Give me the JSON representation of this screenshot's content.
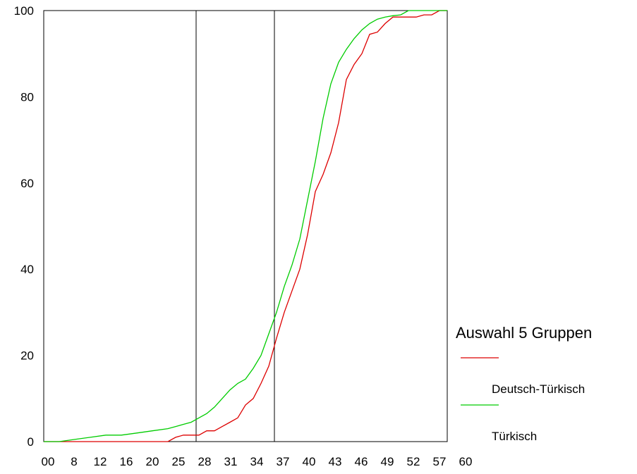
{
  "chart_data": {
    "type": "line",
    "title": "",
    "xlabel": "",
    "ylabel": "",
    "x_tick_labels": [
      "00",
      "8",
      "12",
      "16",
      "20",
      "25",
      "28",
      "31",
      "34",
      "37",
      "40",
      "43",
      "46",
      "49",
      "52",
      "57",
      "60"
    ],
    "y_ticks": [
      0,
      20,
      40,
      60,
      80,
      100
    ],
    "y_tick_labels": [
      "0",
      "20",
      "40",
      "60",
      "80",
      "100"
    ],
    "ylim": [
      0,
      100
    ],
    "grid": false,
    "reference_lines_x": [
      28,
      37
    ],
    "legend": {
      "title": "Auswahl 5 Gruppen",
      "position": "right",
      "entries": [
        {
          "label": "Deutsch-Türkisch",
          "color": "#dd0000"
        },
        {
          "label": "Türkisch",
          "color": "#00cc00"
        }
      ]
    },
    "series": [
      {
        "name": "Deutsch-Türkisch",
        "color": "#dd0000",
        "points": [
          [
            0,
            0
          ],
          [
            2,
            0
          ],
          [
            4,
            0
          ],
          [
            6,
            0
          ],
          [
            8,
            0
          ],
          [
            10,
            0
          ],
          [
            12,
            0
          ],
          [
            14,
            0
          ],
          [
            16,
            0
          ],
          [
            17,
            1
          ],
          [
            18,
            1.5
          ],
          [
            19,
            1.5
          ],
          [
            20,
            1.5
          ],
          [
            21,
            2.5
          ],
          [
            22,
            2.5
          ],
          [
            23,
            3.5
          ],
          [
            24,
            4.5
          ],
          [
            25,
            5.5
          ],
          [
            26,
            8.5
          ],
          [
            27,
            10
          ],
          [
            28,
            13.5
          ],
          [
            29,
            17.5
          ],
          [
            30,
            24
          ],
          [
            31,
            30
          ],
          [
            32,
            35
          ],
          [
            33,
            40
          ],
          [
            34,
            48
          ],
          [
            35,
            58
          ],
          [
            36,
            62
          ],
          [
            37,
            67
          ],
          [
            38,
            74
          ],
          [
            39,
            84
          ],
          [
            40,
            87.5
          ],
          [
            41,
            90
          ],
          [
            42,
            94.5
          ],
          [
            43,
            95
          ],
          [
            44,
            97
          ],
          [
            45,
            98.5
          ],
          [
            46,
            98.5
          ],
          [
            47,
            98.5
          ],
          [
            48,
            98.5
          ],
          [
            49,
            99
          ],
          [
            50,
            99
          ],
          [
            51,
            100
          ],
          [
            52,
            100
          ]
        ]
      },
      {
        "name": "Türkisch",
        "color": "#00cc00",
        "points": [
          [
            0,
            0
          ],
          [
            2,
            0
          ],
          [
            4,
            0.5
          ],
          [
            6,
            1
          ],
          [
            8,
            1.5
          ],
          [
            10,
            1.5
          ],
          [
            12,
            2
          ],
          [
            14,
            2.5
          ],
          [
            16,
            3
          ],
          [
            17,
            3.5
          ],
          [
            18,
            4
          ],
          [
            19,
            4.5
          ],
          [
            20,
            5.5
          ],
          [
            21,
            6.5
          ],
          [
            22,
            8
          ],
          [
            23,
            10
          ],
          [
            24,
            12
          ],
          [
            25,
            13.5
          ],
          [
            26,
            14.5
          ],
          [
            27,
            17
          ],
          [
            28,
            20
          ],
          [
            29,
            25
          ],
          [
            30,
            30
          ],
          [
            31,
            36
          ],
          [
            32,
            41
          ],
          [
            33,
            47
          ],
          [
            34,
            56
          ],
          [
            35,
            65
          ],
          [
            36,
            75
          ],
          [
            37,
            83
          ],
          [
            38,
            88
          ],
          [
            39,
            91
          ],
          [
            40,
            93.5
          ],
          [
            41,
            95.5
          ],
          [
            42,
            97
          ],
          [
            43,
            98
          ],
          [
            44,
            98.5
          ],
          [
            45,
            98.8
          ],
          [
            46,
            99
          ],
          [
            47,
            100
          ],
          [
            48,
            100
          ],
          [
            49,
            100
          ],
          [
            50,
            100
          ],
          [
            51,
            100
          ],
          [
            52,
            100
          ]
        ]
      }
    ]
  }
}
